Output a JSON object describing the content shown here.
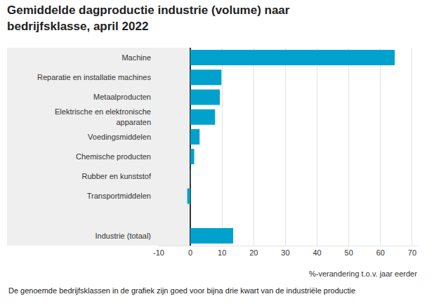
{
  "chart_data": {
    "type": "bar",
    "orientation": "horizontal",
    "title": "Gemiddelde dagproductie industrie (volume) naar bedrijfsklasse, april 2022",
    "categories": [
      "Machine",
      "Reparatie en installatie machines",
      "Metaalproducten",
      "Elektrische en elektronische apparaten",
      "Voedingsmiddelen",
      "Chemische producten",
      "Rubber en kunststof",
      "Transportmiddelen",
      null,
      "Industrie (totaal)"
    ],
    "values": [
      64.5,
      9.8,
      9.3,
      7.8,
      2.9,
      1.2,
      0.1,
      -1.0,
      null,
      13.5
    ],
    "color": "#00a1cd",
    "xlabel": "%-verandering t.o.v. jaar eerder",
    "xlim": [
      -10,
      72
    ],
    "xticks": [
      -10,
      0,
      10,
      20,
      30,
      40,
      50,
      60,
      70
    ],
    "grid": true,
    "annotations": [
      "De genoemde bedrijfsklassen in de grafiek zijn goed voor bijna drie kwart van de industriële productie"
    ]
  }
}
